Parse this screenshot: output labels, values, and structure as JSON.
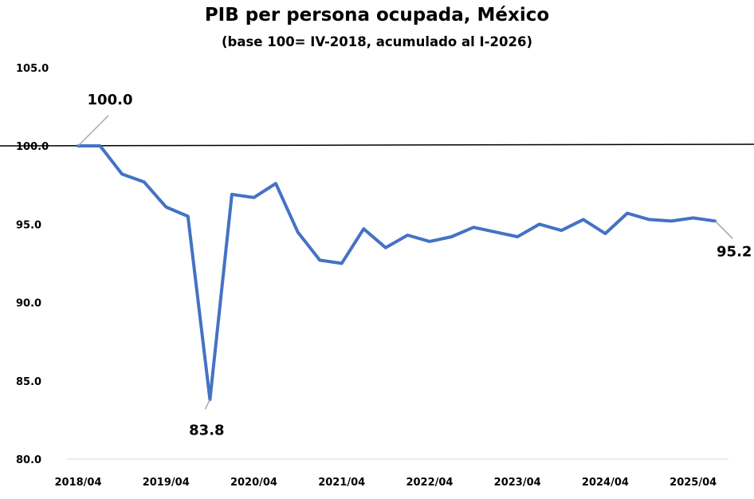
{
  "chart_data": {
    "type": "line",
    "title": "PIB per persona ocupada, México",
    "subtitle": "(base 100= IV-2018, acumulado al I-2026)",
    "xlabel": "",
    "ylabel": "",
    "ylim": [
      80,
      105
    ],
    "y_ticks": [
      "80.0",
      "85.0",
      "90.0",
      "95.0",
      "100.0",
      "105.0"
    ],
    "x_tick_labels": [
      "2018/04",
      "2019/04",
      "2020/04",
      "2021/04",
      "2022/04",
      "2023/04",
      "2024/04",
      "2025/04"
    ],
    "x": [
      "2018/04",
      "2019/01",
      "2019/02",
      "2019/03",
      "2019/04",
      "2020/01",
      "2020/02",
      "2020/03",
      "2020/04",
      "2021/01",
      "2021/02",
      "2021/03",
      "2021/04",
      "2022/01",
      "2022/02",
      "2022/03",
      "2022/04",
      "2023/01",
      "2023/02",
      "2023/03",
      "2023/04",
      "2024/01",
      "2024/02",
      "2024/03",
      "2024/04",
      "2025/01",
      "2025/02",
      "2025/03",
      "2025/04",
      "2026/01"
    ],
    "series": [
      {
        "color": "#4472C4",
        "values": [
          100.0,
          100.0,
          98.2,
          97.7,
          96.1,
          95.5,
          83.8,
          96.9,
          96.7,
          97.6,
          94.5,
          92.7,
          92.5,
          94.7,
          93.5,
          94.3,
          93.9,
          94.2,
          94.8,
          94.5,
          94.2,
          95.0,
          94.6,
          95.3,
          94.4,
          95.7,
          95.3,
          95.2,
          95.4,
          95.2
        ]
      }
    ],
    "reference_line": {
      "value": 100
    },
    "data_labels": [
      {
        "index": 0,
        "text": "100.0"
      },
      {
        "index": 6,
        "text": "83.8"
      },
      {
        "index": 29,
        "text": "95.2"
      }
    ],
    "grid": false,
    "legend": "none"
  }
}
